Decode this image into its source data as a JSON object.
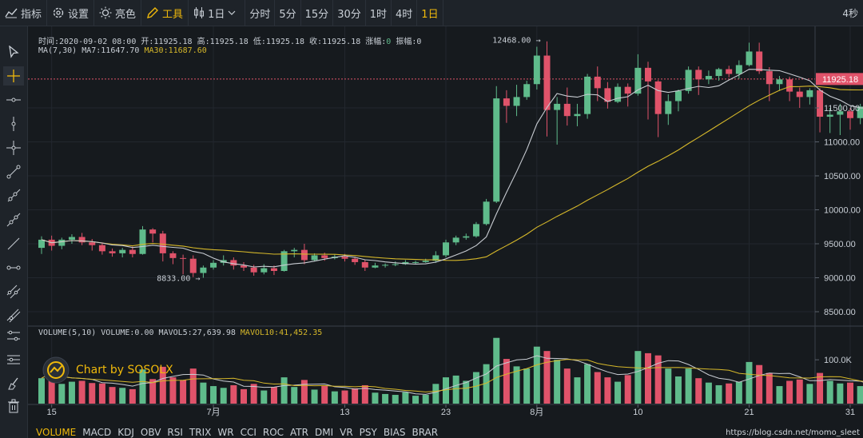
{
  "toolbar": {
    "indicator": "指标",
    "settings": "设置",
    "theme": "亮色",
    "tools": "工具",
    "chart_type": "1日",
    "intervals": [
      "分时",
      "5分",
      "15分",
      "30分",
      "1时",
      "4时",
      "1日"
    ],
    "active_interval": "1日",
    "right_label": "4秒"
  },
  "colors": {
    "up": "#5fbb8b",
    "down": "#e0536a",
    "ma7": "#c8ccd2",
    "ma30": "#d6b82a",
    "accent": "#f0b90b",
    "price_line": "#e0536a"
  },
  "ohlc_info": {
    "time": "时间:2020-09-02 08:00",
    "open": "开:11925.18",
    "high": "高:11925.18",
    "low": "低:11925.18",
    "close": "收:11925.18",
    "change_label": "涨幅:",
    "change_value": "0",
    "amp_label": "振幅:",
    "amp_value": "0"
  },
  "ma_info": {
    "name": "MA(7,30)",
    "ma7": "MA7:11647.70",
    "ma30": "MA30:11687.60"
  },
  "vol_info": {
    "name": "VOLUME(5,10)",
    "vol": "VOLUME:0.00",
    "mavol5": "MAVOL5:27,639.98",
    "mavol10": "MAVOL10:41,452.35"
  },
  "annotations": {
    "high": "12468.00",
    "low": "8833.00"
  },
  "current_price": "11925.18",
  "watermark": "Chart by SOSOLX",
  "bottom_tabs": [
    "VOLUME",
    "MACD",
    "KDJ",
    "OBV",
    "RSI",
    "TRIX",
    "WR",
    "CCI",
    "ROC",
    "ATR",
    "DMI",
    "VR",
    "PSY",
    "BIAS",
    "BRAR"
  ],
  "active_tab": "VOLUME",
  "credit": "https://blog.csdn.net/momo_sleet",
  "chart_data": {
    "type": "candlestick",
    "y_ticks": [
      8500,
      9000,
      9500,
      10000,
      10500,
      11000,
      11500
    ],
    "y_range": [
      8300,
      12700
    ],
    "x_tick_labels": [
      {
        "i": 1,
        "label": "15"
      },
      {
        "i": 17,
        "label": "7月"
      },
      {
        "i": 30,
        "label": "13"
      },
      {
        "i": 40,
        "label": "23"
      },
      {
        "i": 49,
        "label": "8月"
      },
      {
        "i": 59,
        "label": "10"
      },
      {
        "i": 70,
        "label": "21"
      },
      {
        "i": 80,
        "label": "31"
      }
    ],
    "volume_ticks": [
      {
        "v": 100000,
        "label": "100.0K"
      }
    ],
    "volume_range": [
      0,
      175000
    ],
    "candles": [
      [
        9440,
        9560,
        9610,
        9350,
        58000
      ],
      [
        9560,
        9470,
        9620,
        9400,
        82000
      ],
      [
        9470,
        9560,
        9590,
        9420,
        45000
      ],
      [
        9560,
        9600,
        9640,
        9500,
        50000
      ],
      [
        9600,
        9520,
        9660,
        9480,
        52000
      ],
      [
        9520,
        9480,
        9570,
        9400,
        47000
      ],
      [
        9480,
        9390,
        9520,
        9340,
        46000
      ],
      [
        9390,
        9360,
        9430,
        9310,
        38000
      ],
      [
        9360,
        9410,
        9440,
        9300,
        36000
      ],
      [
        9410,
        9350,
        9460,
        9300,
        33000
      ],
      [
        9350,
        9710,
        9760,
        9340,
        78000
      ],
      [
        9710,
        9650,
        9730,
        9520,
        56000
      ],
      [
        9650,
        9360,
        9690,
        9240,
        84000
      ],
      [
        9360,
        9290,
        9390,
        9200,
        60000
      ],
      [
        9290,
        9280,
        9340,
        9050,
        54000
      ],
      [
        9280,
        9070,
        9330,
        9010,
        80000
      ],
      [
        9070,
        9150,
        9180,
        9000,
        48000
      ],
      [
        9150,
        9220,
        9260,
        9120,
        40000
      ],
      [
        9220,
        9260,
        9330,
        9180,
        36000
      ],
      [
        9260,
        9180,
        9300,
        9120,
        42000
      ],
      [
        9180,
        9150,
        9230,
        9100,
        33000
      ],
      [
        9150,
        9080,
        9190,
        9030,
        45000
      ],
      [
        9080,
        9140,
        9200,
        9050,
        30000
      ],
      [
        9140,
        9100,
        9180,
        9040,
        38000
      ],
      [
        9100,
        9390,
        9410,
        9090,
        60000
      ],
      [
        9390,
        9410,
        9440,
        9300,
        38000
      ],
      [
        9410,
        9260,
        9500,
        9200,
        54000
      ],
      [
        9260,
        9330,
        9360,
        9240,
        32000
      ],
      [
        9330,
        9290,
        9370,
        9250,
        40000
      ],
      [
        9290,
        9310,
        9340,
        9270,
        28000
      ],
      [
        9310,
        9280,
        9350,
        9240,
        30000
      ],
      [
        9280,
        9230,
        9310,
        9190,
        35000
      ],
      [
        9230,
        9150,
        9270,
        9100,
        42000
      ],
      [
        9150,
        9180,
        9220,
        9140,
        25000
      ],
      [
        9180,
        9190,
        9210,
        9150,
        22000
      ],
      [
        9190,
        9200,
        9240,
        9170,
        20000
      ],
      [
        9200,
        9230,
        9260,
        9190,
        26000
      ],
      [
        9230,
        9230,
        9250,
        9200,
        18000
      ],
      [
        9230,
        9250,
        9280,
        9220,
        20000
      ],
      [
        9250,
        9330,
        9390,
        9220,
        45000
      ],
      [
        9330,
        9520,
        9560,
        9300,
        60000
      ],
      [
        9520,
        9590,
        9620,
        9480,
        64000
      ],
      [
        9590,
        9610,
        9650,
        9560,
        52000
      ],
      [
        9610,
        9790,
        9820,
        9590,
        72000
      ],
      [
        9790,
        10120,
        10160,
        9770,
        90000
      ],
      [
        10120,
        11640,
        11820,
        10100,
        150000
      ],
      [
        11640,
        11530,
        11760,
        11280,
        102000
      ],
      [
        11530,
        11660,
        11840,
        11380,
        85000
      ],
      [
        11660,
        11850,
        11900,
        11620,
        80000
      ],
      [
        11850,
        12270,
        12400,
        11770,
        130000
      ],
      [
        12270,
        11470,
        12480,
        11080,
        120000
      ],
      [
        11470,
        11560,
        11660,
        10960,
        100000
      ],
      [
        11560,
        11380,
        11800,
        11240,
        80000
      ],
      [
        11380,
        11410,
        11560,
        11230,
        60000
      ],
      [
        11410,
        11960,
        12000,
        11340,
        90000
      ],
      [
        11960,
        11790,
        12110,
        11600,
        72000
      ],
      [
        11790,
        11590,
        11880,
        11490,
        60000
      ],
      [
        11590,
        11810,
        11860,
        11570,
        50000
      ],
      [
        11810,
        11710,
        11860,
        11520,
        65000
      ],
      [
        11710,
        12090,
        12290,
        11680,
        120000
      ],
      [
        12090,
        11890,
        12180,
        11330,
        115000
      ],
      [
        11890,
        11410,
        11910,
        11070,
        110000
      ],
      [
        11410,
        11600,
        11700,
        11250,
        80000
      ],
      [
        11600,
        11750,
        11770,
        11450,
        62000
      ],
      [
        11750,
        12060,
        12110,
        11710,
        80000
      ],
      [
        12060,
        11920,
        12110,
        11690,
        58000
      ],
      [
        11920,
        11970,
        12050,
        11850,
        48000
      ],
      [
        11970,
        12070,
        12090,
        11900,
        42000
      ],
      [
        12070,
        12000,
        12120,
        11950,
        46000
      ],
      [
        12000,
        12130,
        12200,
        11930,
        50000
      ],
      [
        12130,
        12330,
        12460,
        12110,
        95000
      ],
      [
        12330,
        12040,
        12460,
        12000,
        88000
      ],
      [
        12040,
        11850,
        12100,
        11600,
        70000
      ],
      [
        11850,
        11920,
        11970,
        11750,
        40000
      ],
      [
        11920,
        11740,
        11960,
        11600,
        52000
      ],
      [
        11740,
        11660,
        11800,
        11500,
        55000
      ],
      [
        11660,
        11760,
        11790,
        11550,
        45000
      ],
      [
        11760,
        11370,
        11790,
        11140,
        70000
      ],
      [
        11370,
        11400,
        11500,
        11130,
        52000
      ],
      [
        11400,
        11450,
        11560,
        11100,
        46000
      ],
      [
        11450,
        11350,
        11500,
        11180,
        48000
      ],
      [
        11350,
        11520,
        11560,
        11260,
        40000
      ],
      [
        11520,
        11600,
        11640,
        11470,
        35000
      ],
      [
        11600,
        11620,
        11770,
        11510,
        36000
      ],
      [
        11620,
        11570,
        11650,
        11500,
        30000
      ],
      [
        11570,
        11670,
        11770,
        11530,
        34000
      ],
      [
        11670,
        11920,
        11980,
        11630,
        58000
      ]
    ]
  }
}
